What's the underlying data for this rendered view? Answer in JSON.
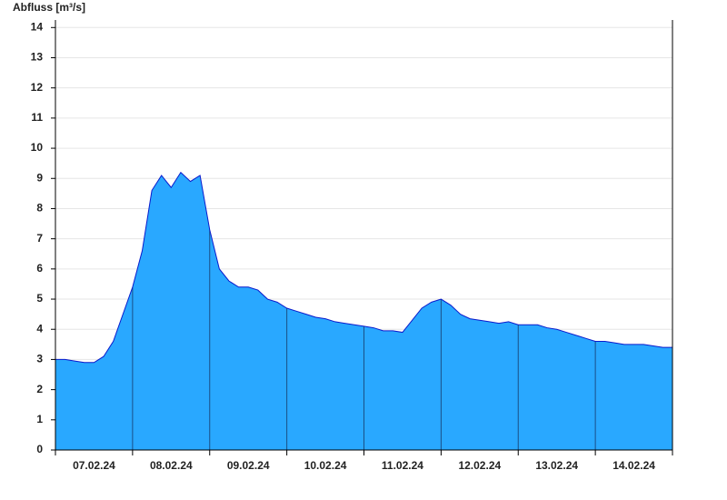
{
  "chart_data": {
    "type": "area",
    "y_label": "Abfluss [m³/s]",
    "x_labels": [
      "07.02.24",
      "08.02.24",
      "09.02.24",
      "10.02.24",
      "11.02.24",
      "12.02.24",
      "13.02.24",
      "14.02.24"
    ],
    "values": [
      3.0,
      3.0,
      2.95,
      2.9,
      2.9,
      3.1,
      3.6,
      4.5,
      5.4,
      6.6,
      8.6,
      9.1,
      8.7,
      9.2,
      8.9,
      9.1,
      7.3,
      6.0,
      5.6,
      5.4,
      5.4,
      5.3,
      5.0,
      4.9,
      4.7,
      4.6,
      4.5,
      4.4,
      4.35,
      4.25,
      4.2,
      4.15,
      4.1,
      4.05,
      3.95,
      3.95,
      3.9,
      4.3,
      4.7,
      4.9,
      5.0,
      4.8,
      4.5,
      4.35,
      4.3,
      4.25,
      4.2,
      4.25,
      4.15,
      4.15,
      4.15,
      4.05,
      4.0,
      3.9,
      3.8,
      3.7,
      3.6,
      3.6,
      3.55,
      3.5,
      3.5,
      3.5,
      3.45,
      3.4,
      3.4
    ],
    "color": "#29a8ff",
    "line_color": "#0a1acc",
    "ylim": [
      0,
      14.25
    ],
    "yticks": [
      0,
      1,
      2,
      3,
      4,
      5,
      6,
      7,
      8,
      9,
      10,
      11,
      12,
      13,
      14
    ],
    "grid": true
  }
}
